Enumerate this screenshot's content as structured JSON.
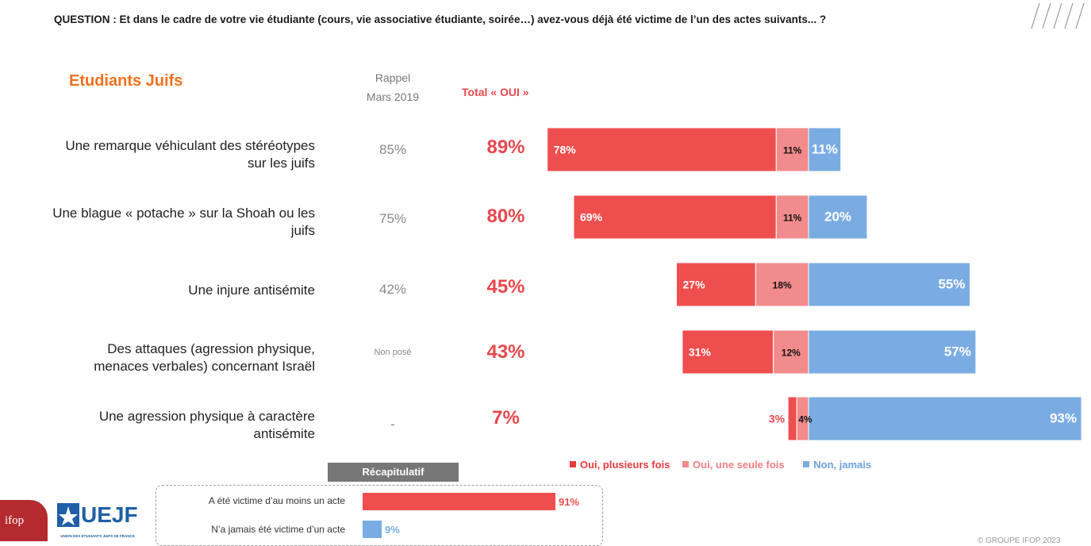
{
  "question": "QUESTION : Et dans le cadre de votre vie étudiante (cours, vie associative étudiante, soirée…) avez-vous déjà été victime de l’un des actes suivants... ?",
  "group_title": "Etudiants Juifs",
  "rappel_line1": "Rappel",
  "rappel_line2": "Mars 2019",
  "total_header": "Total « OUI »",
  "colors": {
    "plusieurs": "#ef4e4e",
    "une_seule": "#f28b8b",
    "jamais": "#7aace3",
    "total": "#e8474c",
    "title": "#f07020"
  },
  "chart_data": {
    "type": "bar",
    "orientation": "horizontal-diverging",
    "categories": [
      "Une remarque véhiculant des stéréotypes sur les juifs",
      "Une blague « potache » sur la Shoah ou les juifs",
      "Une injure antisémite",
      "Des attaques (agression physique, menaces verbales) concernant Israël",
      "Une agression physique à caractère antisémite"
    ],
    "series": [
      {
        "name": "Oui, plusieurs fois",
        "values": [
          78,
          69,
          27,
          31,
          3
        ]
      },
      {
        "name": "Oui, une seule fois",
        "values": [
          11,
          11,
          18,
          12,
          4
        ]
      },
      {
        "name": "Non, jamais",
        "values": [
          11,
          20,
          55,
          57,
          93
        ]
      }
    ],
    "labels": {
      "plusieurs": [
        "78%",
        "69%",
        "27%",
        "31%",
        "3%"
      ],
      "une_seule": [
        "11%",
        "11%",
        "18%",
        "12%",
        "4%"
      ],
      "jamais": [
        "11%",
        "20%",
        "55%",
        "57%",
        "93%"
      ]
    },
    "rappel_mars_2019": [
      "85%",
      "75%",
      "42%",
      "Non posé",
      "-"
    ],
    "total_oui": [
      "89%",
      "80%",
      "45%",
      "43%",
      "7%"
    ],
    "legend_position": "bottom"
  },
  "rows": [
    {
      "label_line1": "Une remarque véhiculant des stéréotypes",
      "label_line2": "sur les juifs"
    },
    {
      "label_line1": "Une blague « potache » sur la Shoah ou les",
      "label_line2": "juifs"
    },
    {
      "label_line1": "Une injure antisémite",
      "label_line2": ""
    },
    {
      "label_line1": "Des attaques (agression physique,",
      "label_line2": "menaces verbales) concernant Israël"
    },
    {
      "label_line1": "Une agression physique à caractère",
      "label_line2": "antisémite"
    }
  ],
  "legend": {
    "plusieurs": "Oui, plusieurs fois",
    "une_seule": "Oui, une seule fois",
    "jamais": "Non, jamais"
  },
  "recap": {
    "title": "Récapitulatif",
    "items": [
      {
        "label": "A été victime d’au moins un acte",
        "value": 91,
        "text": "91%"
      },
      {
        "label": "N’a jamais été victime d’un acte",
        "value": 9,
        "text": "9%"
      }
    ]
  },
  "logos": {
    "ifop": "ifop",
    "uejf": "UEJF",
    "uejf_sub": "UNION DES ÉTUDIANTS JUIFS DE FRANCE"
  },
  "copyright": "© GROUPE IFOP 2023"
}
